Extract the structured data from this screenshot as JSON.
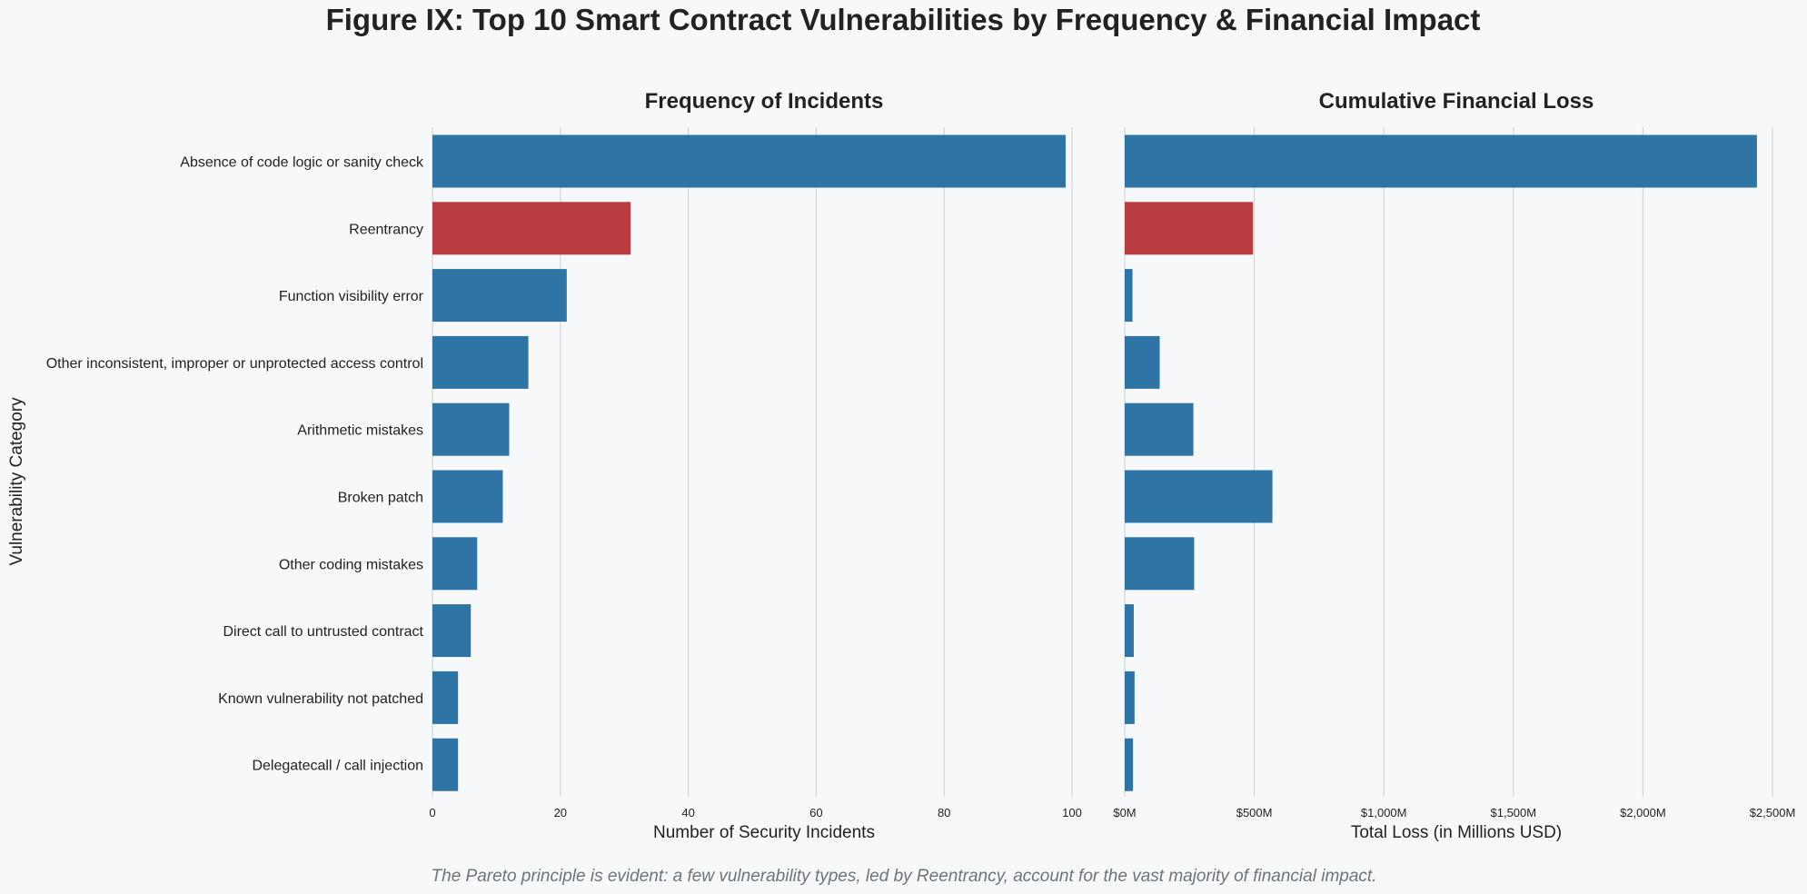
{
  "title": "Figure IX: Top 10 Smart Contract Vulnerabilities by Frequency & Financial Impact",
  "caption": "The Pareto principle is evident: a few vulnerability types, led by Reentrancy, account for the vast majority of financial impact.",
  "colors": {
    "background": "#f6f8fa",
    "bar": "#2e75a6",
    "highlight": "#b83c40",
    "grid": "#cfcfcf"
  },
  "chart_data": [
    {
      "type": "bar",
      "orientation": "horizontal",
      "title": "Frequency of Incidents",
      "xlabel": "Number of Security Incidents",
      "ylabel": "Vulnerability Category",
      "xlim": [
        0,
        100
      ],
      "xticks": [
        0,
        20,
        40,
        60,
        80,
        100
      ],
      "xtick_labels": [
        "0",
        "20",
        "40",
        "60",
        "80",
        "100"
      ],
      "grid": "vertical",
      "highlight_category": "Reentrancy",
      "categories": [
        "Absence of code logic or sanity check",
        "Reentrancy",
        "Function visibility error",
        "Other inconsistent, improper or unprotected access control",
        "Arithmetic mistakes",
        "Broken patch",
        "Other coding mistakes",
        "Direct call to untrusted contract",
        "Known vulnerability not patched",
        "Delegatecall / call injection"
      ],
      "values": [
        99,
        31,
        21,
        15,
        12,
        11,
        7,
        6,
        4,
        4
      ]
    },
    {
      "type": "bar",
      "orientation": "horizontal",
      "title": "Cumulative Financial Loss",
      "xlabel": "Total Loss (in Millions USD)",
      "ylabel": "",
      "xlim": [
        0,
        2500
      ],
      "xticks": [
        0,
        500,
        1000,
        1500,
        2000,
        2500
      ],
      "xtick_labels": [
        "$0M",
        "$500M",
        "$1,000M",
        "$1,500M",
        "$2,000M",
        "$2,500M"
      ],
      "grid": "vertical",
      "highlight_category": "Reentrancy",
      "categories": [
        "Absence of code logic or sanity check",
        "Reentrancy",
        "Function visibility error",
        "Other inconsistent, improper or unprotected access control",
        "Arithmetic mistakes",
        "Broken patch",
        "Other coding mistakes",
        "Direct call to untrusted contract",
        "Known vulnerability not patched",
        "Delegatecall / call injection"
      ],
      "values": [
        2440,
        495,
        30,
        135,
        265,
        570,
        268,
        35,
        38,
        32
      ]
    }
  ]
}
